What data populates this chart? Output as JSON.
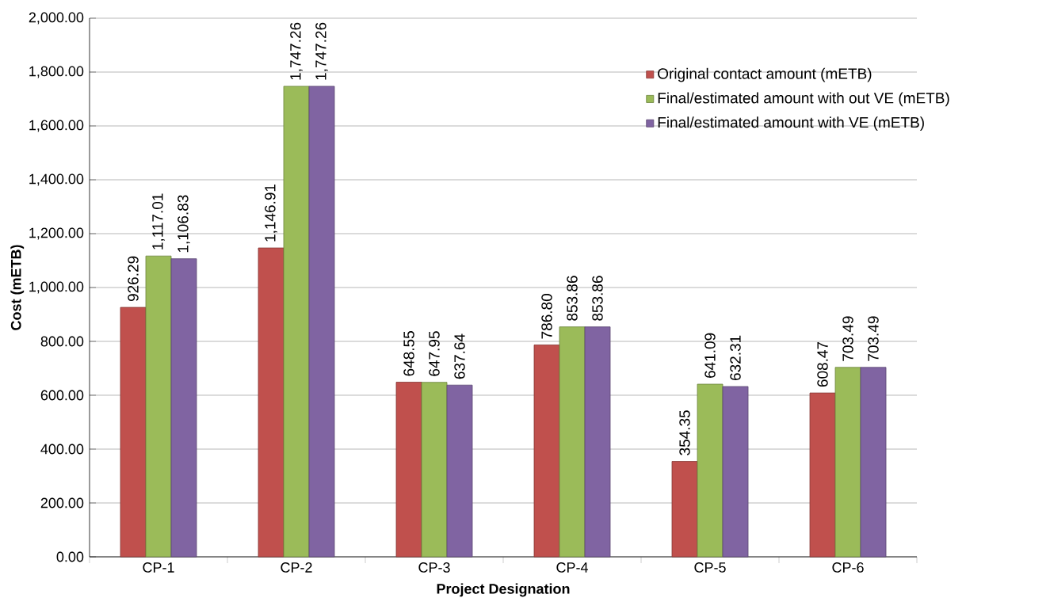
{
  "chart_data": {
    "type": "bar",
    "categories": [
      "CP-1",
      "CP-2",
      "CP-3",
      "CP-4",
      "CP-5",
      "CP-6"
    ],
    "series": [
      {
        "name": "Original contact amount (mETB)",
        "color": "#c0504d",
        "values": [
          926.29,
          1146.91,
          648.55,
          786.8,
          354.35,
          608.47
        ],
        "value_labels": [
          "926.29",
          "1,146.91",
          "648.55",
          "786.80",
          "354.35",
          "608.47"
        ]
      },
      {
        "name": "Final/estimated amount with out VE (mETB)",
        "color": "#9bbb59",
        "values": [
          1117.01,
          1747.26,
          647.95,
          853.86,
          641.09,
          703.49
        ],
        "value_labels": [
          "1,117.01",
          "1,747.26",
          "647.95",
          "853.86",
          "641.09",
          "703.49"
        ]
      },
      {
        "name": "Final/estimated amount with VE (mETB)",
        "color": "#8064a2",
        "values": [
          1106.83,
          1747.26,
          637.64,
          853.86,
          632.31,
          703.49
        ],
        "value_labels": [
          "1,106.83",
          "1,747.26",
          "637.64",
          "853.86",
          "632.31",
          "703.49"
        ]
      }
    ],
    "xlabel": "Project Designation",
    "ylabel": "Cost (mETB)",
    "ylim": [
      0,
      2000
    ],
    "yticks": [
      {
        "value": 0,
        "label": "0.00"
      },
      {
        "value": 200,
        "label": "200.00"
      },
      {
        "value": 400,
        "label": "400.00"
      },
      {
        "value": 600,
        "label": "600.00"
      },
      {
        "value": 800,
        "label": "800.00"
      },
      {
        "value": 1000,
        "label": "1,000.00"
      },
      {
        "value": 1200,
        "label": "1,200.00"
      },
      {
        "value": 1400,
        "label": "1,400.00"
      },
      {
        "value": 1600,
        "label": "1,600.00"
      },
      {
        "value": 1800,
        "label": "1,800.00"
      },
      {
        "value": 2000,
        "label": "2,000.00"
      }
    ],
    "grid": "y",
    "legend": "top right"
  }
}
